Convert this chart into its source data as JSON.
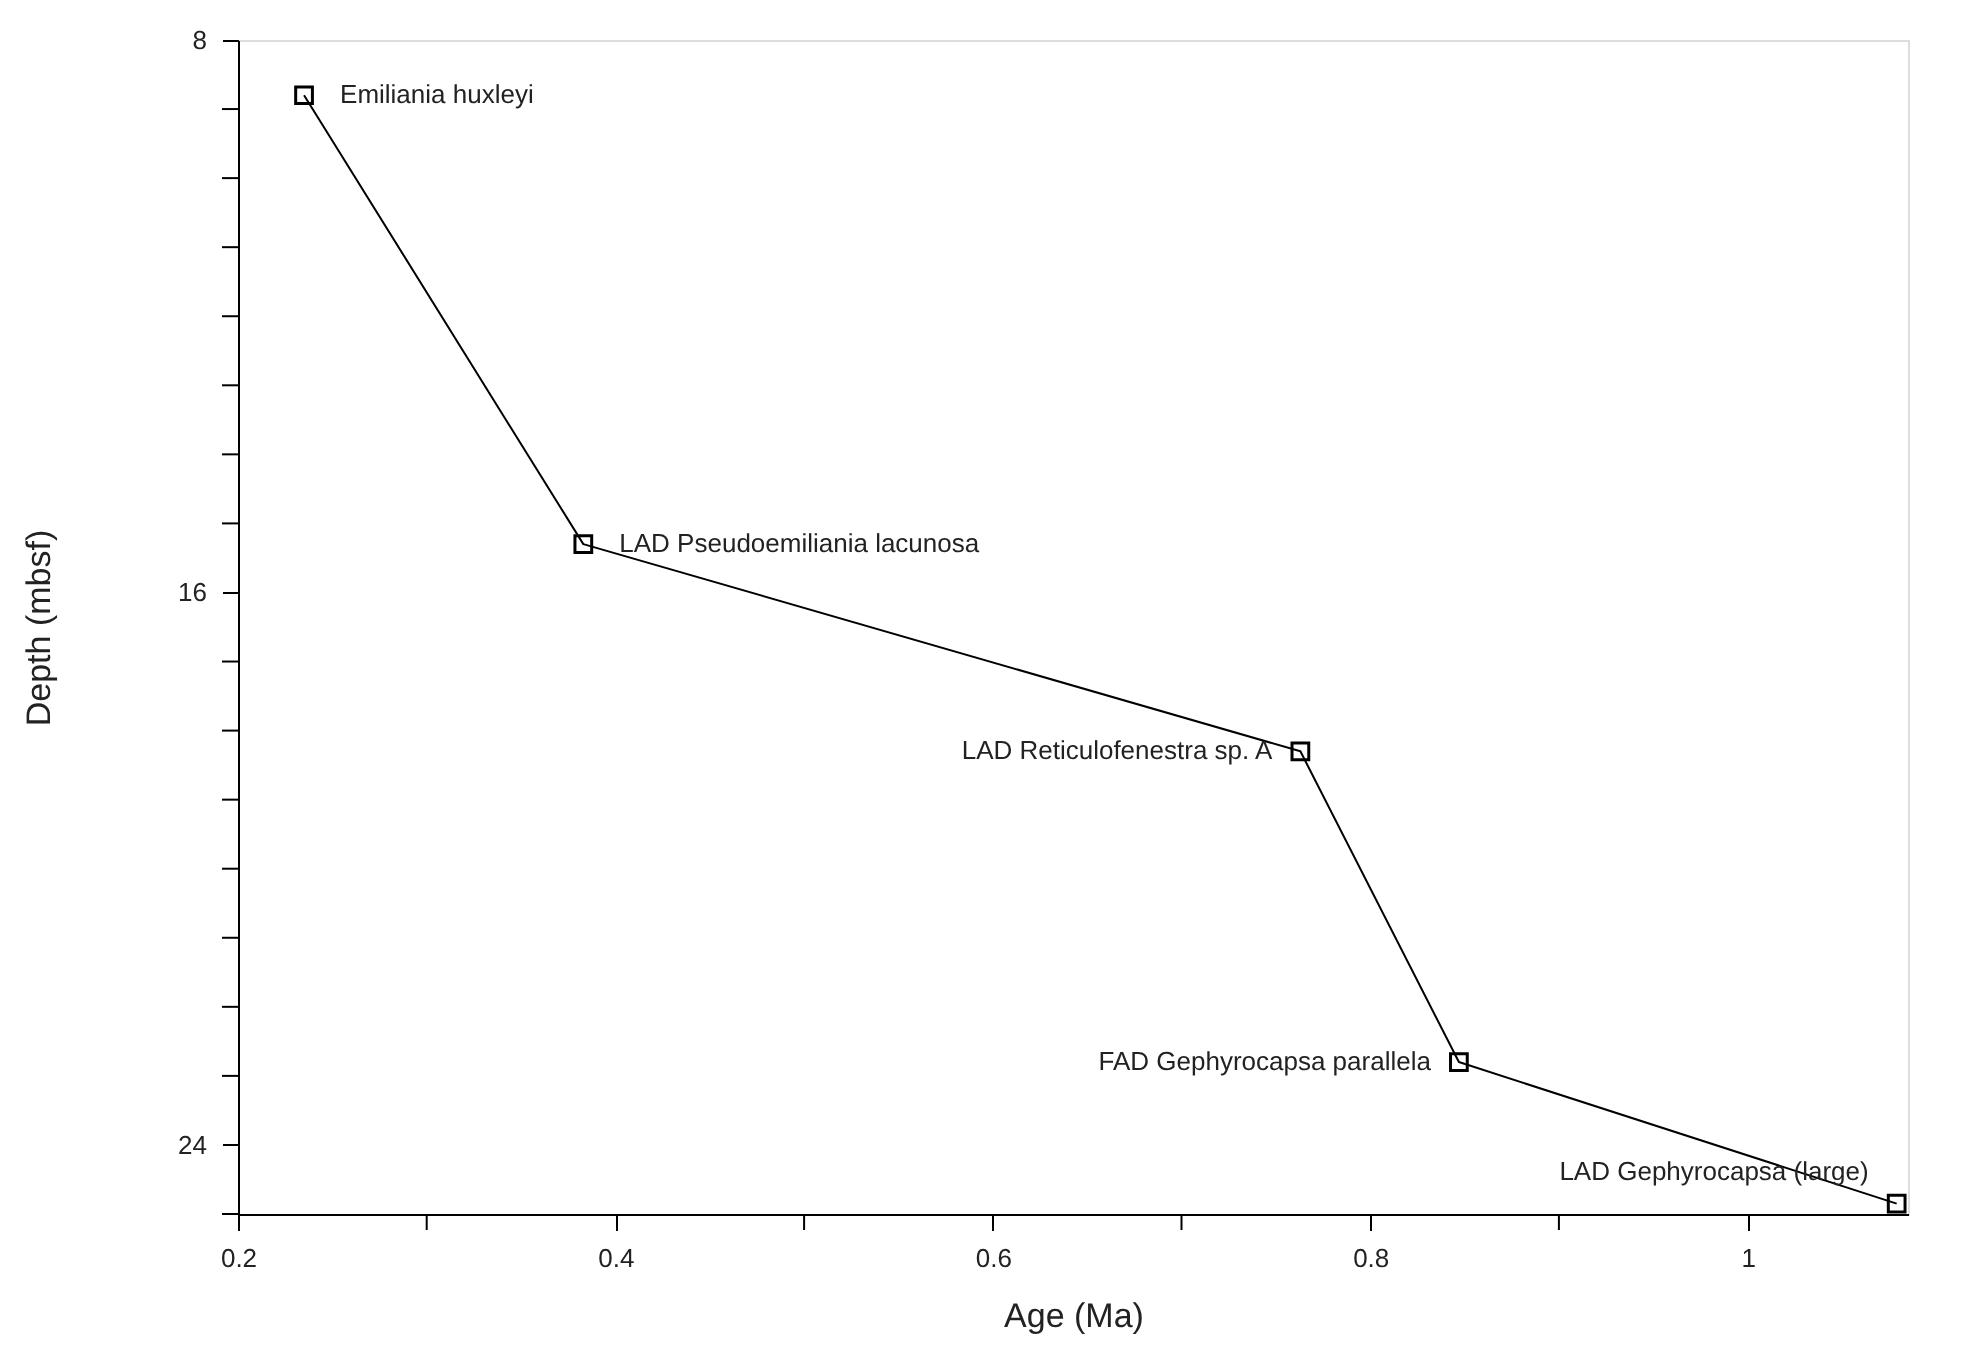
{
  "chart_data": {
    "type": "line",
    "xlabel": "Age (Ma)",
    "ylabel": "Depth (mbsf)",
    "x": [
      0.235,
      0.383,
      0.763,
      0.847,
      1.079
    ],
    "series": [
      {
        "color": "#000000",
        "values": [
          8.8,
          15.3,
          18.3,
          22.8,
          24.85
        ]
      }
    ],
    "xlim": [
      0.2,
      1.085
    ],
    "ylim": [
      25,
      8
    ],
    "xticks": [
      0.2,
      {
        "value": 0.3,
        "label": null
      },
      0.4,
      {
        "value": 0.5,
        "label": null
      },
      0.6,
      {
        "value": 0.7,
        "label": null
      },
      0.8,
      {
        "value": 0.9,
        "label": null
      },
      1
    ],
    "yticks": [
      8,
      {
        "value": 9,
        "label": null
      },
      {
        "value": 10,
        "label": null
      },
      {
        "value": 11,
        "label": null
      },
      {
        "value": 12,
        "label": null
      },
      {
        "value": 13,
        "label": null
      },
      {
        "value": 14,
        "label": null
      },
      {
        "value": 15,
        "label": null
      },
      16,
      {
        "value": 17,
        "label": null
      },
      {
        "value": 18,
        "label": null
      },
      {
        "value": 19,
        "label": null
      },
      {
        "value": 20,
        "label": null
      },
      {
        "value": 21,
        "label": null
      },
      {
        "value": 22,
        "label": null
      },
      {
        "value": 23,
        "label": null
      },
      24,
      {
        "value": 25,
        "label": null
      }
    ],
    "annotations": [
      {
        "text": "Emiliania huxleyi",
        "x": 0.235,
        "y": 8.8
      },
      {
        "text": "LAD Pseudoemiliania lacunosa",
        "x": 0.383,
        "y": 15.3
      },
      {
        "text": "LAD Reticulofenestra sp. A",
        "x": 0.763,
        "y": 18.3
      },
      {
        "text": "FAD Gephyrocapsa parallela",
        "x": 0.847,
        "y": 22.8
      },
      {
        "text": "LAD Gephyrocapsa (large)",
        "x": 1.079,
        "y": 24.85
      }
    ],
    "marker": "square",
    "line_style": "solid",
    "grid": false
  }
}
